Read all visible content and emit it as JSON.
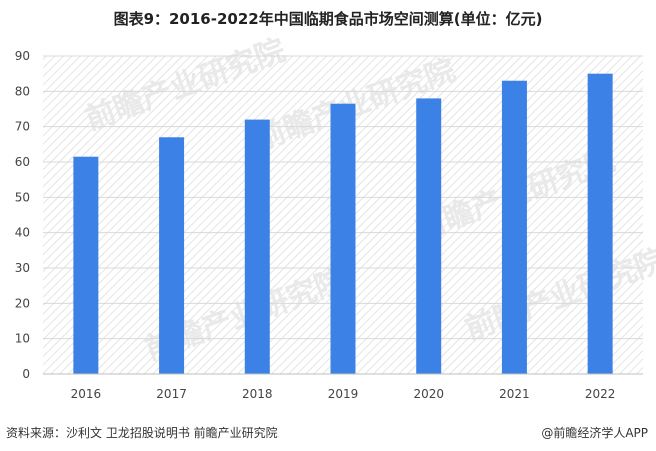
{
  "header": {
    "title": "图表9：2016-2022年中国临期食品市场空间测算(单位：亿元)"
  },
  "footer": {
    "source": "资料来源：沙利文 卫龙招股说明书 前瞻产业研究院",
    "brand": "@前瞻经济学人APP"
  },
  "watermark": {
    "text": "前瞻产业研究院"
  },
  "colors": {
    "bar": "#3c82e6",
    "grid": "#d9d9d9",
    "hatch": "#e6e6e6",
    "axis": "#bfbfbf"
  },
  "chart_data": {
    "type": "bar",
    "title": "图表9：2016-2022年中国临期食品市场空间测算(单位：亿元)",
    "categories": [
      "2016",
      "2017",
      "2018",
      "2019",
      "2020",
      "2021",
      "2022"
    ],
    "values": [
      61.5,
      67,
      72,
      76.5,
      78,
      83,
      85
    ],
    "ylim": [
      0,
      90
    ],
    "yticks": [
      0,
      10,
      20,
      30,
      40,
      50,
      60,
      70,
      80,
      90
    ],
    "grid": true,
    "legend": "none"
  }
}
